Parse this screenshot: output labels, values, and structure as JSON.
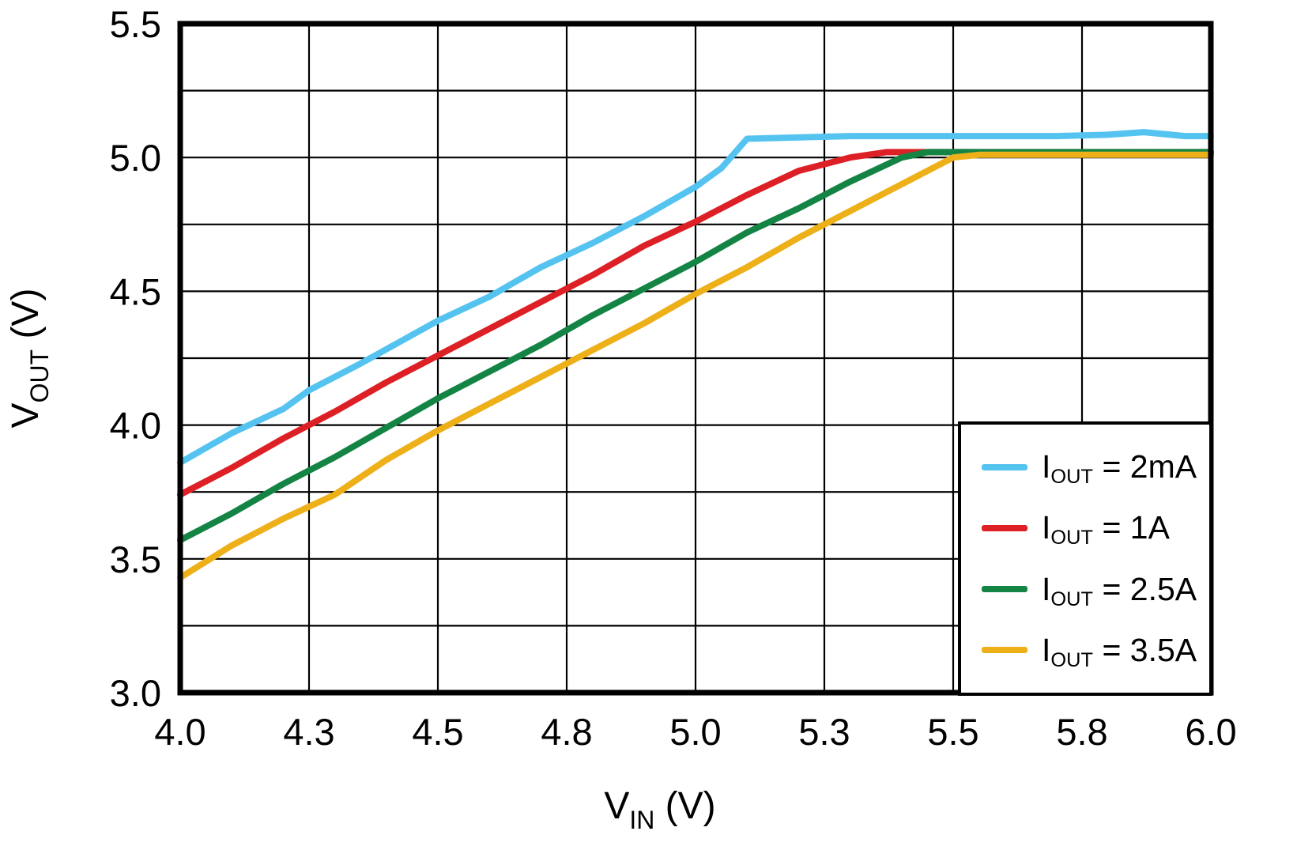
{
  "chart_data": {
    "type": "line",
    "title": "",
    "xlabel": {
      "base": "V",
      "sub": "IN",
      "suffix": " (V)"
    },
    "ylabel": {
      "base": "V",
      "sub": "OUT",
      "suffix": " (V)"
    },
    "xlim": [
      4.0,
      6.0
    ],
    "ylim": [
      3.0,
      5.5
    ],
    "grid": true,
    "legend_position": "bottom-right",
    "x_ticks": {
      "values": [
        4.0,
        4.25,
        4.5,
        4.75,
        5.0,
        5.25,
        5.5,
        5.75,
        6.0
      ],
      "labels": [
        "4.0",
        "4.3",
        "4.5",
        "4.8",
        "5.0",
        "5.3",
        "5.5",
        "5.8",
        "6.0"
      ]
    },
    "y_ticks": {
      "values": [
        3.0,
        3.5,
        4.0,
        4.5,
        5.0,
        5.5
      ],
      "labels": [
        "3.0",
        "3.5",
        "4.0",
        "4.5",
        "5.0",
        "5.5"
      ]
    },
    "x_gridlines": [
      4.0,
      4.25,
      4.5,
      4.75,
      5.0,
      5.25,
      5.5,
      5.75,
      6.0
    ],
    "y_gridlines": [
      3.0,
      3.25,
      3.5,
      3.75,
      4.0,
      4.25,
      4.5,
      4.75,
      5.0,
      5.25,
      5.5
    ],
    "series": [
      {
        "id": "iout-2ma",
        "name": "IOUT = 2mA",
        "label": {
          "base": "I",
          "sub": "OUT",
          "suffix": " = 2mA"
        },
        "color": "#55C3F0",
        "points": [
          [
            4.0,
            3.86
          ],
          [
            4.1,
            3.97
          ],
          [
            4.2,
            4.06
          ],
          [
            4.25,
            4.13
          ],
          [
            4.35,
            4.23
          ],
          [
            4.5,
            4.39
          ],
          [
            4.6,
            4.48
          ],
          [
            4.7,
            4.59
          ],
          [
            4.8,
            4.68
          ],
          [
            4.9,
            4.78
          ],
          [
            5.0,
            4.89
          ],
          [
            5.05,
            4.96
          ],
          [
            5.1,
            5.07
          ],
          [
            5.3,
            5.08
          ],
          [
            5.5,
            5.08
          ],
          [
            5.7,
            5.08
          ],
          [
            5.8,
            5.085
          ],
          [
            5.87,
            5.095
          ],
          [
            5.95,
            5.08
          ],
          [
            6.0,
            5.08
          ]
        ]
      },
      {
        "id": "iout-1a",
        "name": "IOUT = 1A",
        "label": {
          "base": "I",
          "sub": "OUT",
          "suffix": " = 1A"
        },
        "color": "#DD2025",
        "points": [
          [
            4.0,
            3.74
          ],
          [
            4.1,
            3.84
          ],
          [
            4.2,
            3.95
          ],
          [
            4.3,
            4.05
          ],
          [
            4.4,
            4.16
          ],
          [
            4.5,
            4.26
          ],
          [
            4.6,
            4.36
          ],
          [
            4.7,
            4.46
          ],
          [
            4.8,
            4.56
          ],
          [
            4.9,
            4.67
          ],
          [
            5.0,
            4.76
          ],
          [
            5.1,
            4.86
          ],
          [
            5.2,
            4.95
          ],
          [
            5.3,
            5.0
          ],
          [
            5.37,
            5.02
          ],
          [
            5.6,
            5.02
          ],
          [
            6.0,
            5.02
          ]
        ]
      },
      {
        "id": "iout-2.5a",
        "name": "IOUT = 2.5A",
        "label": {
          "base": "I",
          "sub": "OUT",
          "suffix": " = 2.5A"
        },
        "color": "#148444",
        "points": [
          [
            4.0,
            3.57
          ],
          [
            4.1,
            3.67
          ],
          [
            4.2,
            3.78
          ],
          [
            4.3,
            3.88
          ],
          [
            4.4,
            3.99
          ],
          [
            4.5,
            4.1
          ],
          [
            4.6,
            4.2
          ],
          [
            4.7,
            4.3
          ],
          [
            4.8,
            4.41
          ],
          [
            4.9,
            4.51
          ],
          [
            5.0,
            4.61
          ],
          [
            5.1,
            4.72
          ],
          [
            5.2,
            4.81
          ],
          [
            5.3,
            4.91
          ],
          [
            5.4,
            5.0
          ],
          [
            5.45,
            5.02
          ],
          [
            5.7,
            5.02
          ],
          [
            6.0,
            5.02
          ]
        ]
      },
      {
        "id": "iout-3.5a",
        "name": "IOUT = 3.5A",
        "label": {
          "base": "I",
          "sub": "OUT",
          "suffix": " = 3.5A"
        },
        "color": "#EDB019",
        "points": [
          [
            4.0,
            3.43
          ],
          [
            4.1,
            3.55
          ],
          [
            4.2,
            3.65
          ],
          [
            4.3,
            3.74
          ],
          [
            4.4,
            3.87
          ],
          [
            4.5,
            3.98
          ],
          [
            4.6,
            4.08
          ],
          [
            4.7,
            4.18
          ],
          [
            4.8,
            4.28
          ],
          [
            4.9,
            4.38
          ],
          [
            5.0,
            4.49
          ],
          [
            5.1,
            4.59
          ],
          [
            5.2,
            4.7
          ],
          [
            5.3,
            4.8
          ],
          [
            5.4,
            4.9
          ],
          [
            5.5,
            5.0
          ],
          [
            5.55,
            5.01
          ],
          [
            6.0,
            5.01
          ]
        ]
      }
    ]
  }
}
